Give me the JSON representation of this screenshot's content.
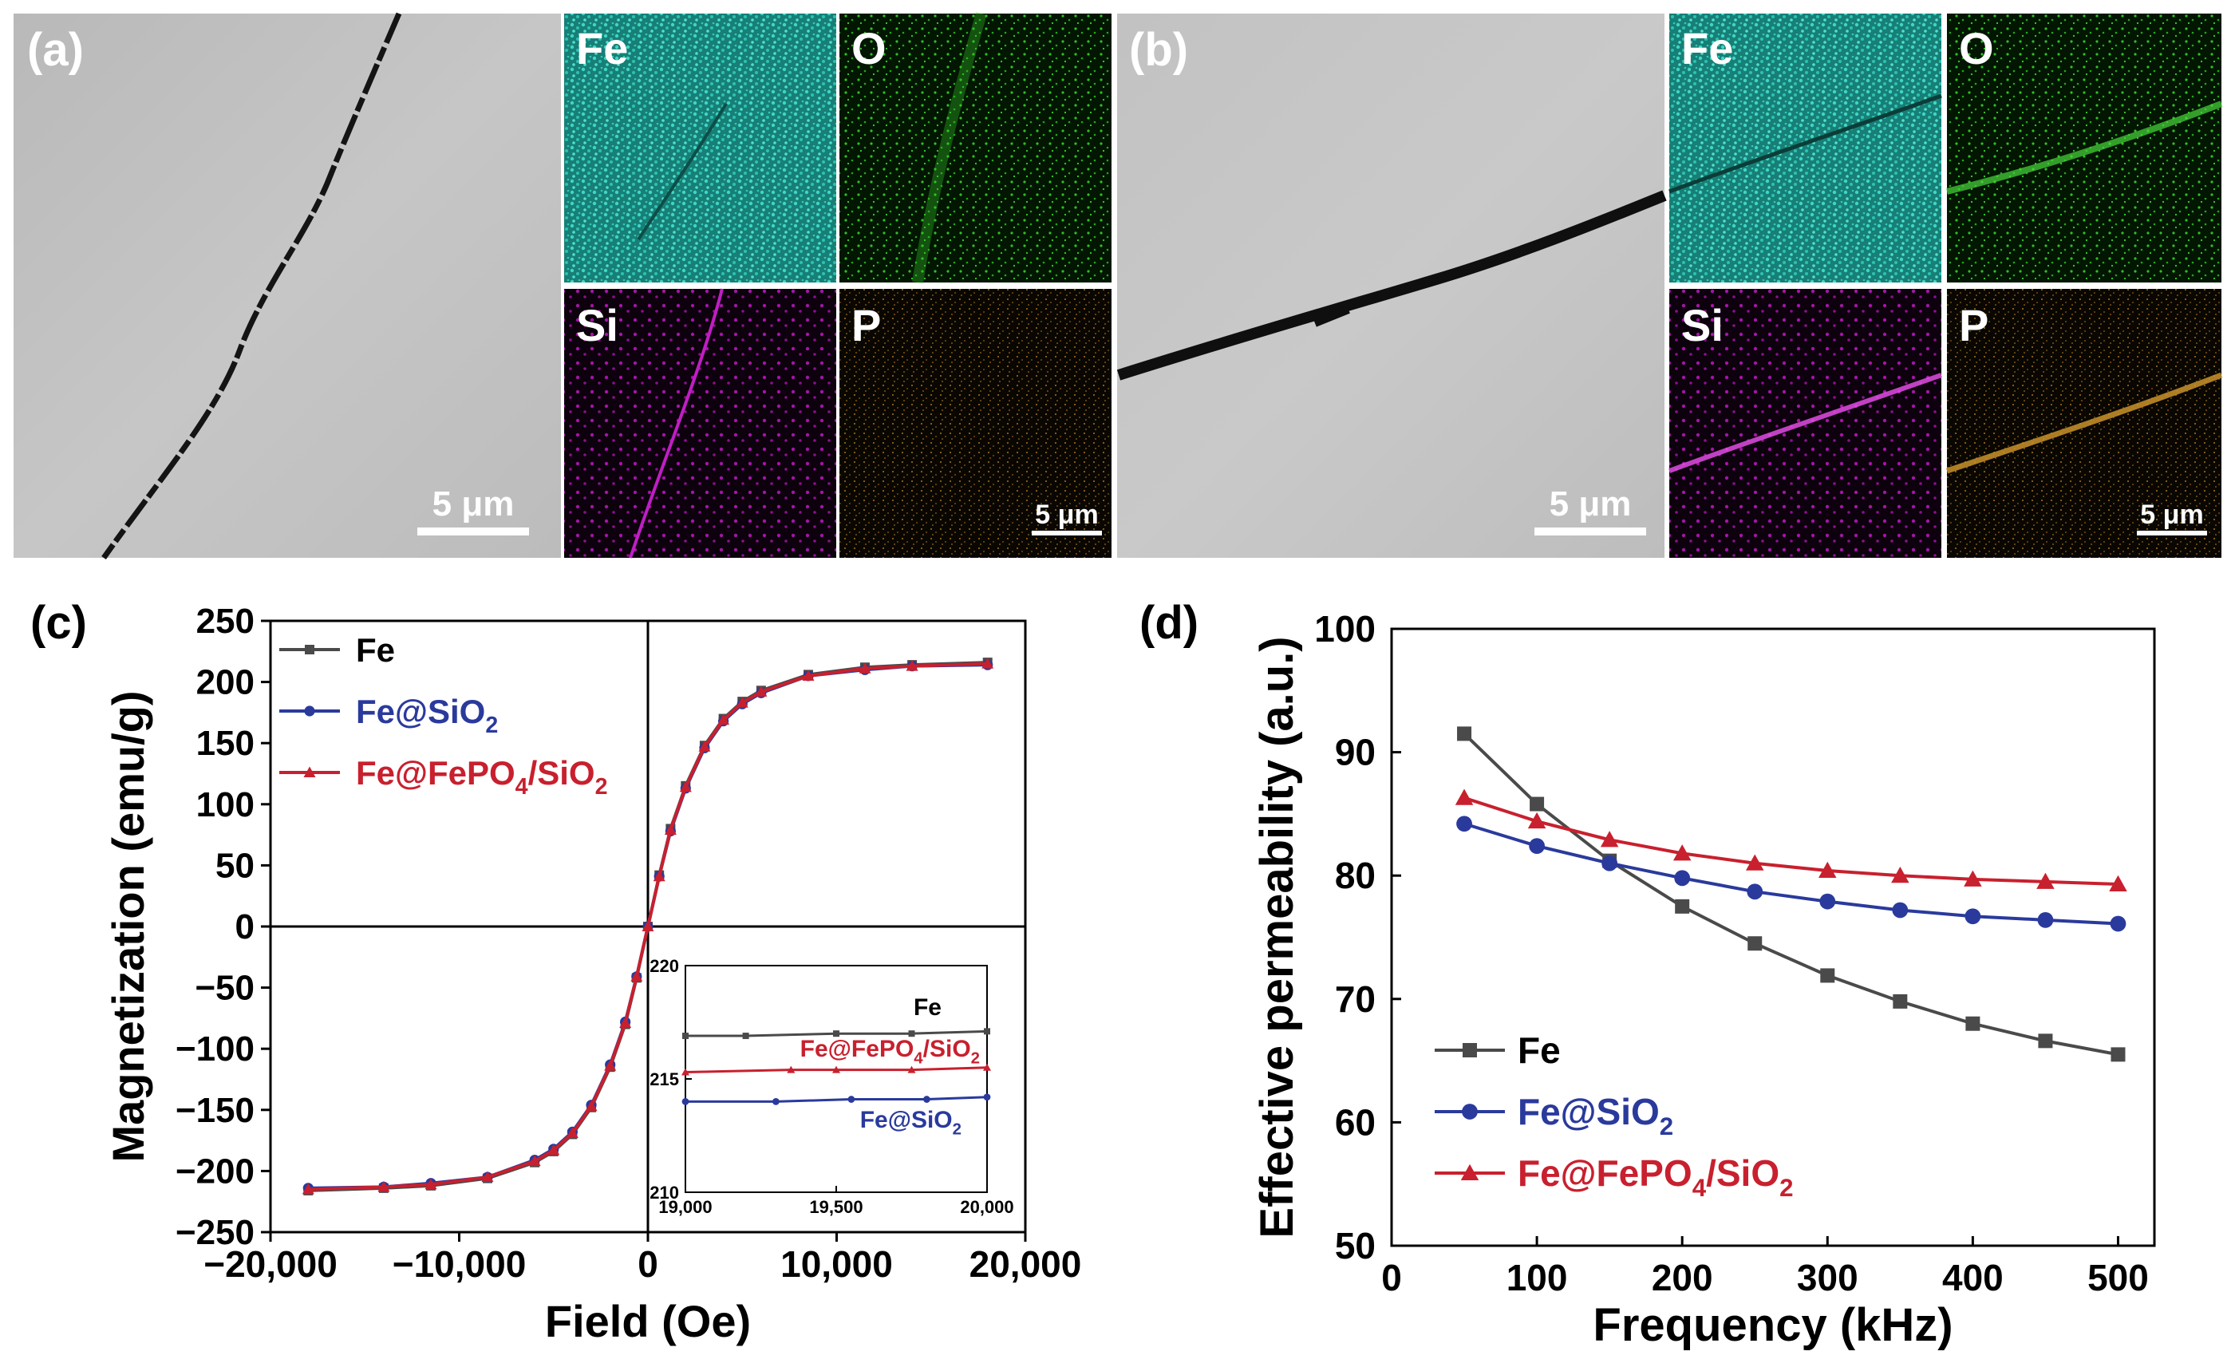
{
  "panels": {
    "a": {
      "label": "(a)",
      "scale_bar": "5 μm",
      "map_scale_bar": "5 μm",
      "maps": [
        "Fe",
        "O",
        "Si",
        "P"
      ]
    },
    "b": {
      "label": "(b)",
      "scale_bar": "5 μm",
      "map_scale_bar": "5 μm",
      "maps": [
        "Fe",
        "O",
        "Si",
        "P"
      ]
    },
    "c": {
      "label": "(c)"
    },
    "d": {
      "label": "(d)"
    }
  },
  "colors": {
    "fe_map": "#1fb5a5",
    "o_map": "#19a81c",
    "si_map": "#b01ab0",
    "p_map": "#b7841a",
    "series_fe": "#4a4a4a",
    "series_sio2": "#2a3a9c",
    "series_fepo4": "#c8202e"
  },
  "chart_data": [
    {
      "id": "c",
      "type": "line",
      "title": "",
      "xlabel": "Field (Oe)",
      "ylabel": "Magnetization (emu/g)",
      "xlim": [
        -20000,
        20000
      ],
      "ylim": [
        -250,
        250
      ],
      "xticks": [
        -20000,
        -10000,
        0,
        10000,
        20000
      ],
      "xtick_labels": [
        "−20,000",
        "−10,000",
        "0",
        "10,000",
        "20,000"
      ],
      "yticks": [
        250,
        200,
        150,
        100,
        50,
        0,
        -50,
        -100,
        -150,
        -200,
        -250
      ],
      "ytick_labels": [
        "250",
        "200",
        "150",
        "100",
        "50",
        "0",
        "−50",
        "−100",
        "−150",
        "−200",
        "−250"
      ],
      "series": [
        {
          "name": "Fe",
          "name_parts": [
            "Fe"
          ],
          "marker": "square",
          "x": [
            -18000,
            -14000,
            -11500,
            -8500,
            -6000,
            -5000,
            -4000,
            -3000,
            -2000,
            -1200,
            -600,
            0,
            600,
            1200,
            2000,
            3000,
            4000,
            5000,
            6000,
            8500,
            11500,
            14000,
            18000
          ],
          "y": [
            -216,
            -214,
            -212,
            -206,
            -193,
            -184,
            -170,
            -148,
            -115,
            -80,
            -42,
            0,
            42,
            80,
            115,
            148,
            170,
            184,
            193,
            206,
            212,
            214,
            216
          ]
        },
        {
          "name": "Fe@SiO2",
          "name_parts": [
            "Fe@SiO",
            "2"
          ],
          "marker": "circle",
          "x": [
            -18000,
            -14000,
            -11500,
            -8500,
            -6000,
            -5000,
            -4000,
            -3000,
            -2000,
            -1200,
            -600,
            0,
            600,
            1200,
            2000,
            3000,
            4000,
            5000,
            6000,
            8500,
            11500,
            14000,
            18000
          ],
          "y": [
            -214,
            -213,
            -210,
            -205,
            -191,
            -182,
            -168,
            -146,
            -113,
            -78,
            -41,
            0,
            41,
            78,
            113,
            146,
            168,
            182,
            191,
            205,
            210,
            213,
            214
          ]
        },
        {
          "name": "Fe@FePO4/SiO2",
          "name_parts": [
            "Fe@FePO",
            "4",
            "/SiO",
            "2"
          ],
          "marker": "triangle",
          "x": [
            -18000,
            -14000,
            -11500,
            -8500,
            -6000,
            -5000,
            -4000,
            -3000,
            -2000,
            -1200,
            -600,
            0,
            600,
            1200,
            2000,
            3000,
            4000,
            5000,
            6000,
            8500,
            11500,
            14000,
            18000
          ],
          "y": [
            -215,
            -213,
            -211,
            -205,
            -192,
            -183,
            -169,
            -147,
            -114,
            -79,
            -41,
            0,
            41,
            79,
            114,
            147,
            169,
            183,
            192,
            205,
            211,
            213,
            215
          ]
        }
      ],
      "legend": "top-left",
      "inset": {
        "xlim": [
          19000,
          20000
        ],
        "ylim": [
          210,
          220
        ],
        "xticks": [
          19000,
          19500,
          20000
        ],
        "xtick_labels": [
          "19,000",
          "19,500",
          "20,000"
        ],
        "yticks": [
          220,
          215,
          210
        ],
        "ytick_labels": [
          "220",
          "215",
          "210"
        ],
        "series": [
          {
            "name": "Fe",
            "label_parts": [
              "Fe"
            ],
            "x": [
              19000,
              19200,
              19500,
              19750,
              20000
            ],
            "y": [
              216.9,
              216.9,
              217.0,
              217.0,
              217.1
            ]
          },
          {
            "name": "Fe@FePO4/SiO2",
            "label_parts": [
              "Fe@FePO",
              "4",
              "/SiO",
              "2"
            ],
            "x": [
              19000,
              19350,
              19500,
              19750,
              20000
            ],
            "y": [
              215.3,
              215.4,
              215.4,
              215.4,
              215.5
            ]
          },
          {
            "name": "Fe@SiO2",
            "label_parts": [
              "Fe@SiO",
              "2"
            ],
            "x": [
              19000,
              19300,
              19550,
              19800,
              20000
            ],
            "y": [
              214.0,
              214.0,
              214.1,
              214.1,
              214.2
            ]
          }
        ]
      }
    },
    {
      "id": "d",
      "type": "line",
      "title": "",
      "xlabel": "Frequency (kHz)",
      "ylabel": "Effective permeability (a.u.)",
      "xlim": [
        0,
        525
      ],
      "ylim": [
        50,
        100
      ],
      "xticks": [
        0,
        100,
        200,
        300,
        400,
        500
      ],
      "xtick_labels": [
        "0",
        "100",
        "200",
        "300",
        "400",
        "500"
      ],
      "yticks": [
        50,
        60,
        70,
        80,
        90,
        100
      ],
      "ytick_labels": [
        "50",
        "60",
        "70",
        "80",
        "90",
        "100"
      ],
      "categories": [
        50,
        100,
        150,
        200,
        250,
        300,
        350,
        400,
        450,
        500
      ],
      "series": [
        {
          "name": "Fe",
          "name_parts": [
            "Fe"
          ],
          "marker": "square",
          "values": [
            91.5,
            85.8,
            81.2,
            77.5,
            74.5,
            71.9,
            69.8,
            68.0,
            66.6,
            65.5
          ]
        },
        {
          "name": "Fe@SiO2",
          "name_parts": [
            "Fe@SiO",
            "2"
          ],
          "marker": "circle",
          "values": [
            84.2,
            82.4,
            81.0,
            79.8,
            78.7,
            77.9,
            77.2,
            76.7,
            76.4,
            76.1
          ]
        },
        {
          "name": "Fe@FePO4/SiO2",
          "name_parts": [
            "Fe@FePO",
            "4",
            "/SiO",
            "2"
          ],
          "marker": "triangle",
          "values": [
            86.3,
            84.4,
            82.9,
            81.8,
            81.0,
            80.4,
            80.0,
            79.7,
            79.5,
            79.3
          ]
        }
      ],
      "legend": "bottom-left"
    }
  ]
}
